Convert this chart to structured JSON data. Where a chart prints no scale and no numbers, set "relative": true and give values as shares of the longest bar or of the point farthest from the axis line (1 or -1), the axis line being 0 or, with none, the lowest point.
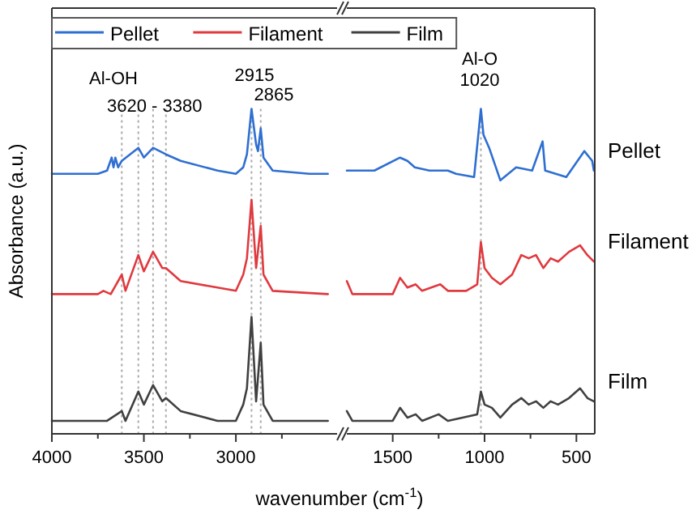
{
  "chart_data": [
    {
      "type": "line",
      "relative": true,
      "ylabel": "Absorbance (a.u.)",
      "xlabel": "wavenumber (cm$^{-1}$)",
      "legend": "top",
      "xlim": [
        4000,
        2450
      ],
      "xticks": [
        4000,
        {
          "value": 3750,
          "label": null
        },
        3500,
        {
          "value": 3250,
          "label": null
        },
        3000,
        {
          "value": 2750,
          "label": null
        }
      ],
      "annotations": [
        "Al-OH",
        "3620 - 3380",
        "2915",
        "2865"
      ],
      "ref_lines": [
        {
          "axis": "x",
          "value": 3620,
          "color": "#aaaaaa",
          "line_style": "dotted"
        },
        {
          "axis": "x",
          "value": 3530,
          "color": "#aaaaaa",
          "line_style": "dotted"
        },
        {
          "axis": "x",
          "value": 3450,
          "color": "#aaaaaa",
          "line_style": "dotted"
        },
        {
          "axis": "x",
          "value": 3380,
          "color": "#aaaaaa",
          "line_style": "dotted"
        },
        {
          "axis": "x",
          "value": 2915,
          "color": "#aaaaaa",
          "line_style": "dotted"
        },
        {
          "axis": "x",
          "value": 2865,
          "color": "#aaaaaa",
          "line_style": "dotted"
        }
      ],
      "series": [
        {
          "name": "Pellet",
          "color": "#2e6fd1",
          "x": [
            4000,
            3750,
            3700,
            3675,
            3665,
            3655,
            3640,
            3620,
            3530,
            3500,
            3450,
            3380,
            3300,
            3100,
            3000,
            2960,
            2940,
            2915,
            2890,
            2880,
            2865,
            2850,
            2800,
            2600,
            2500
          ],
          "values": [
            0.8,
            0.8,
            0.81,
            0.85,
            0.82,
            0.85,
            0.82,
            0.84,
            0.88,
            0.85,
            0.88,
            0.86,
            0.84,
            0.81,
            0.8,
            0.82,
            0.86,
            1.0,
            0.89,
            0.87,
            0.94,
            0.85,
            0.81,
            0.8,
            0.8
          ]
        },
        {
          "name": "Filament",
          "color": "#e0393e",
          "x": [
            4000,
            3750,
            3720,
            3680,
            3620,
            3600,
            3530,
            3500,
            3450,
            3400,
            3380,
            3300,
            3100,
            3000,
            2960,
            2940,
            2915,
            2890,
            2865,
            2850,
            2800,
            2500
          ],
          "values": [
            0.43,
            0.43,
            0.44,
            0.43,
            0.49,
            0.44,
            0.55,
            0.5,
            0.56,
            0.51,
            0.51,
            0.47,
            0.45,
            0.44,
            0.49,
            0.54,
            0.72,
            0.51,
            0.64,
            0.49,
            0.44,
            0.43
          ]
        },
        {
          "name": "Film",
          "color": "#404040",
          "x": [
            4000,
            3700,
            3620,
            3600,
            3530,
            3500,
            3450,
            3400,
            3380,
            3300,
            3100,
            3000,
            2960,
            2940,
            2915,
            2890,
            2865,
            2850,
            2800,
            2500
          ],
          "values": [
            0.04,
            0.04,
            0.07,
            0.04,
            0.13,
            0.09,
            0.15,
            0.1,
            0.11,
            0.07,
            0.04,
            0.04,
            0.09,
            0.14,
            0.36,
            0.1,
            0.28,
            0.09,
            0.04,
            0.04
          ]
        }
      ]
    },
    {
      "type": "line",
      "relative": true,
      "xlim": [
        1750,
        400
      ],
      "xticks": [
        1500,
        {
          "value": 1250,
          "label": null
        },
        1000,
        {
          "value": 750,
          "label": null
        },
        500
      ],
      "annotations": [
        "Al-O",
        "1020"
      ],
      "ref_lines": [
        {
          "axis": "x",
          "value": 1020,
          "color": "#aaaaaa",
          "line_style": "dotted"
        }
      ],
      "series": [
        {
          "name": "Pellet",
          "color": "#2e6fd1",
          "x": [
            1750,
            1600,
            1460,
            1420,
            1380,
            1300,
            1200,
            1155,
            1057,
            1020,
            1006,
            975,
            914,
            828,
            741,
            684,
            670,
            555,
            457,
            414,
            405
          ],
          "values": [
            0.81,
            0.81,
            0.85,
            0.84,
            0.82,
            0.81,
            0.81,
            0.8,
            0.79,
            1.0,
            0.92,
            0.88,
            0.78,
            0.82,
            0.81,
            0.9,
            0.81,
            0.79,
            0.87,
            0.84,
            0.81
          ]
        },
        {
          "name": "Filament",
          "color": "#e0393e",
          "x": [
            1750,
            1720,
            1500,
            1460,
            1420,
            1375,
            1340,
            1241,
            1200,
            1100,
            1040,
            1020,
            1000,
            960,
            914,
            850,
            800,
            760,
            720,
            680,
            640,
            600,
            540,
            480,
            440,
            405
          ],
          "values": [
            0.47,
            0.43,
            0.43,
            0.48,
            0.45,
            0.46,
            0.44,
            0.46,
            0.44,
            0.44,
            0.46,
            0.59,
            0.51,
            0.48,
            0.46,
            0.49,
            0.55,
            0.54,
            0.55,
            0.51,
            0.54,
            0.53,
            0.56,
            0.58,
            0.55,
            0.53
          ]
        },
        {
          "name": "Film",
          "color": "#404040",
          "x": [
            1750,
            1720,
            1500,
            1460,
            1420,
            1375,
            1340,
            1250,
            1200,
            1040,
            1020,
            1000,
            960,
            914,
            850,
            800,
            760,
            720,
            680,
            640,
            600,
            540,
            480,
            440,
            405
          ],
          "values": [
            0.07,
            0.04,
            0.04,
            0.08,
            0.05,
            0.06,
            0.04,
            0.06,
            0.04,
            0.06,
            0.13,
            0.09,
            0.08,
            0.05,
            0.09,
            0.11,
            0.09,
            0.1,
            0.08,
            0.1,
            0.09,
            0.11,
            0.14,
            0.11,
            0.1
          ]
        }
      ]
    }
  ]
}
